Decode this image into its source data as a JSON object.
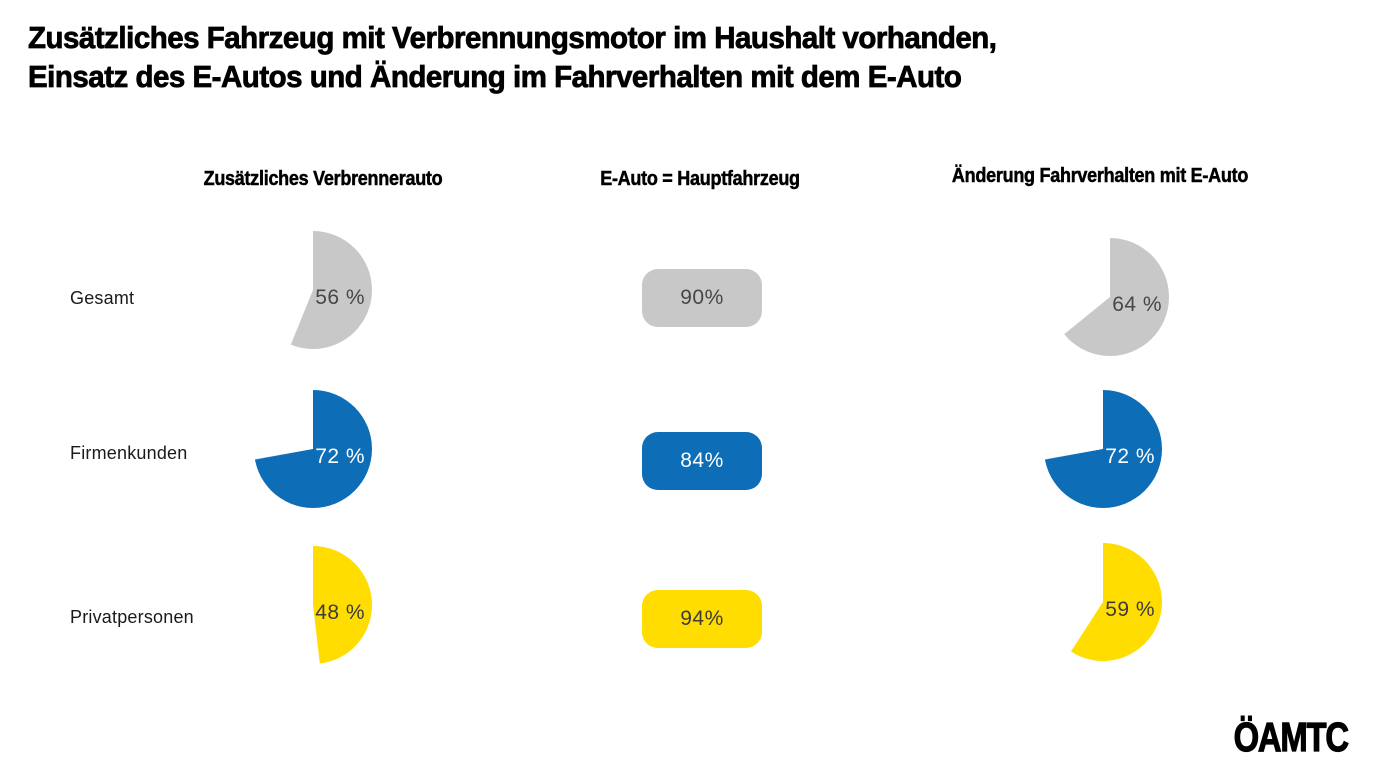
{
  "title": {
    "line1": "Zusätzliches Fahrzeug mit Verbrennungsmotor im Haushalt vorhanden,",
    "line2": "Einsatz des E-Autos und Änderung im Fahrverhalten mit dem E-Auto"
  },
  "columns": [
    {
      "label": "Zusätzliches Verbrennerauto"
    },
    {
      "label": "E-Auto = Hauptfahrzeug"
    },
    {
      "label": "Änderung Fahrverhalten mit E-Auto"
    }
  ],
  "rows": [
    {
      "label": "Gesamt",
      "color": "gray",
      "cells": [
        {
          "kind": "pie",
          "value": 56,
          "display": "56 %"
        },
        {
          "kind": "badge",
          "value": 90,
          "display": "90%"
        },
        {
          "kind": "pie",
          "value": 64,
          "display": "64 %"
        }
      ]
    },
    {
      "label": "Firmenkunden",
      "color": "blue",
      "cells": [
        {
          "kind": "pie",
          "value": 72,
          "display": "72 %"
        },
        {
          "kind": "badge",
          "value": 84,
          "display": "84%"
        },
        {
          "kind": "pie",
          "value": 72,
          "display": "72 %"
        }
      ]
    },
    {
      "label": "Privatpersonen",
      "color": "yellow",
      "cells": [
        {
          "kind": "pie",
          "value": 48,
          "display": "48 %"
        },
        {
          "kind": "badge",
          "value": 94,
          "display": "94%"
        },
        {
          "kind": "pie",
          "value": 59,
          "display": "59 %"
        }
      ]
    }
  ],
  "colors": {
    "gray": {
      "fill": "#c8c8c8",
      "text": "#474747"
    },
    "blue": {
      "fill": "#0d6db7",
      "text": "#ffffff"
    },
    "yellow": {
      "fill": "#ffdd00",
      "text": "#3c3c3c"
    }
  },
  "logo": {
    "text": "ÖAMTC"
  },
  "chart_data": {
    "type": "pie",
    "title": "Zusätzliches Fahrzeug mit Verbrennungsmotor im Haushalt vorhanden, Einsatz des E-Autos und Änderung im Fahrverhalten mit dem E-Auto",
    "categories": [
      "Gesamt",
      "Firmenkunden",
      "Privatpersonen"
    ],
    "series": [
      {
        "name": "Zusätzliches Verbrennerauto",
        "representation": "pie",
        "values": [
          56,
          72,
          48
        ],
        "unit": "%"
      },
      {
        "name": "E-Auto = Hauptfahrzeug",
        "representation": "badge",
        "values": [
          90,
          84,
          94
        ],
        "unit": "%"
      },
      {
        "name": "Änderung Fahrverhalten mit E-Auto",
        "representation": "pie",
        "values": [
          64,
          72,
          59
        ],
        "unit": "%"
      }
    ],
    "category_colors": {
      "Gesamt": "#c8c8c8",
      "Firmenkunden": "#0d6db7",
      "Privatpersonen": "#ffdd00"
    },
    "pie_start_angle_deg": 0,
    "pie_direction": "clockwise",
    "legend": "none",
    "source_logo": "ÖAMTC"
  }
}
